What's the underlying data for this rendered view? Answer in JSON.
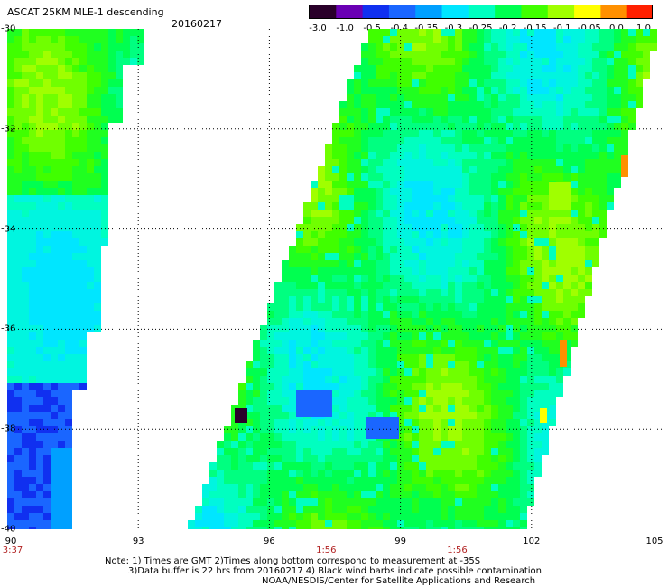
{
  "header": {
    "title": "ASCAT 25KM MLE-1 descending",
    "date": "20160217"
  },
  "colorbar": {
    "labels": [
      "-3.0",
      "-1.0",
      "-0.5",
      "-0.4",
      "-0.35",
      "-0.3",
      "-0.25",
      "-0.2",
      "-0.15",
      "-0.1",
      "-0.05",
      "0.0",
      "1.0"
    ],
    "colors": [
      "#2a002a",
      "#6a00b4",
      "#1030f0",
      "#1a66ff",
      "#00a0ff",
      "#00e6ff",
      "#00ffc0",
      "#00ff50",
      "#40ff00",
      "#a0ff00",
      "#ffff00",
      "#ff9000",
      "#ff2000"
    ]
  },
  "axes": {
    "lat_labels": [
      "-30",
      "-32",
      "-34",
      "-36",
      "-38",
      "-40"
    ],
    "lon_labels": [
      "90",
      "93",
      "96",
      "99",
      "102",
      "105"
    ],
    "time_labels": [
      {
        "text": "3:37",
        "lon": 90
      },
      {
        "text": "1:56",
        "lon": 97.3
      },
      {
        "text": "1:56",
        "lon": 100.3
      }
    ]
  },
  "footer": {
    "note1": "Note: 1) Times are GMT 2)Times along bottom correspond to measurement at -35S",
    "note2": "3)Data buffer is 22 hrs from 20160217 4) Black wind barbs indicate possible contamination",
    "note3": "NOAA/NESDIS/Center for Satellite Applications and Research"
  }
}
